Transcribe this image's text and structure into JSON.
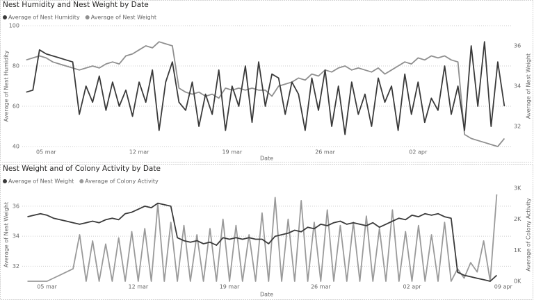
{
  "chart_data": [
    {
      "type": "line",
      "title": "Nest Humidity and Nest Weight by Date",
      "x_label": "Date",
      "y_label": "Average of Nest Humidity",
      "y2_label": "Average of Nest Weight",
      "x": [
        3.5,
        4,
        4.5,
        5,
        5.5,
        6,
        6.5,
        7,
        7.5,
        8,
        8.5,
        9,
        9.5,
        10,
        10.5,
        11,
        11.5,
        12,
        12.5,
        13,
        13.5,
        14,
        14.5,
        15,
        15.5,
        16,
        16.5,
        17,
        17.5,
        18,
        18.5,
        19,
        19.5,
        20,
        20.5,
        21,
        21.5,
        22,
        22.5,
        23,
        23.5,
        24,
        24.5,
        25,
        25.5,
        26,
        26.5,
        27,
        27.5,
        28,
        28.5,
        29,
        29.5,
        30,
        30.5,
        31,
        31.5,
        32,
        32.5,
        33,
        33.5,
        34,
        34.5,
        35,
        35.5,
        36,
        36.5,
        37,
        37.5,
        38,
        38.5,
        39,
        39.5
      ],
      "xlim": [
        3.2,
        40
      ],
      "xticks": [
        {
          "value": 5,
          "label": "05 mar"
        },
        {
          "value": 12,
          "label": "12 mar"
        },
        {
          "value": 19,
          "label": "19 mar"
        },
        {
          "value": 26,
          "label": "26 mar"
        },
        {
          "value": 33,
          "label": "02 apr"
        }
      ],
      "ylim": [
        40,
        100
      ],
      "yticks": [
        40,
        60,
        80,
        100
      ],
      "y2lim": [
        31,
        37
      ],
      "y2ticks": [
        32,
        34,
        36
      ],
      "grid": true,
      "series": [
        {
          "name": "Average of Nest Humidity",
          "color": "#3a3a3a",
          "values": [
            67,
            68,
            88,
            86,
            85,
            84,
            83,
            82,
            56,
            70,
            62,
            75,
            58,
            72,
            60,
            68,
            55,
            72,
            62,
            78,
            48,
            72,
            82,
            62,
            58,
            72,
            50,
            66,
            56,
            78,
            48,
            70,
            60,
            80,
            52,
            82,
            60,
            76,
            74,
            56,
            72,
            66,
            48,
            74,
            58,
            78,
            50,
            70,
            46,
            72,
            56,
            66,
            50,
            74,
            62,
            70,
            48,
            76,
            56,
            72,
            52,
            64,
            58,
            80,
            56,
            70,
            48,
            90,
            60,
            92,
            50,
            82,
            60
          ]
        },
        {
          "name": "Average of Nest Weight",
          "color": "#8f8f8f",
          "axis": "y2",
          "values": [
            35.3,
            35.4,
            35.5,
            35.4,
            35.2,
            35.1,
            35.0,
            34.9,
            34.8,
            34.9,
            35.0,
            34.9,
            35.1,
            35.2,
            35.1,
            35.5,
            35.6,
            35.8,
            36.0,
            35.9,
            36.2,
            36.1,
            36.0,
            33.9,
            33.7,
            33.6,
            33.7,
            33.5,
            33.6,
            33.4,
            33.9,
            33.8,
            33.9,
            33.8,
            33.9,
            33.8,
            33.8,
            33.5,
            34.0,
            34.1,
            34.2,
            34.4,
            34.3,
            34.6,
            34.5,
            34.8,
            34.7,
            34.9,
            35.0,
            34.8,
            34.9,
            34.8,
            34.7,
            34.9,
            34.6,
            34.8,
            35.0,
            35.2,
            35.1,
            35.4,
            35.3,
            35.5,
            35.4,
            35.5,
            35.3,
            35.2,
            31.6,
            31.4,
            31.3,
            31.2,
            31.1,
            31.0,
            31.4
          ]
        }
      ]
    },
    {
      "type": "line",
      "title": "Nest Weight and of Colony Activity by Date",
      "x_label": "Date",
      "y_label": "Average of Nest Weight",
      "y2_label": "Average of Colony Activity",
      "x": [
        3.5,
        4,
        4.5,
        5,
        5.5,
        6,
        6.5,
        7,
        7.5,
        8,
        8.5,
        9,
        9.5,
        10,
        10.5,
        11,
        11.5,
        12,
        12.5,
        13,
        13.5,
        14,
        14.5,
        15,
        15.5,
        16,
        16.5,
        17,
        17.5,
        18,
        18.5,
        19,
        19.5,
        20,
        20.5,
        21,
        21.5,
        22,
        22.5,
        23,
        23.5,
        24,
        24.5,
        25,
        25.5,
        26,
        26.5,
        27,
        27.5,
        28,
        28.5,
        29,
        29.5,
        30,
        30.5,
        31,
        31.5,
        32,
        32.5,
        33,
        33.5,
        34,
        34.5,
        35,
        35.5,
        36,
        36.5,
        37,
        37.5,
        38,
        38.5,
        39,
        39.5
      ],
      "xlim": [
        3.1,
        40.6
      ],
      "xticks": [
        {
          "value": 5,
          "label": "05 mar"
        },
        {
          "value": 12,
          "label": "12 mar"
        },
        {
          "value": 19,
          "label": "19 mar"
        },
        {
          "value": 26,
          "label": "26 mar"
        },
        {
          "value": 33,
          "label": "02 apr"
        },
        {
          "value": 40,
          "label": "09 apr"
        }
      ],
      "ylim": [
        31,
        37.2
      ],
      "yticks": [
        32,
        34,
        36
      ],
      "y2lim": [
        0,
        3000
      ],
      "y2ticks": [
        {
          "value": 0,
          "label": "0K"
        },
        {
          "value": 1000,
          "label": "1K"
        },
        {
          "value": 2000,
          "label": "2K"
        },
        {
          "value": 3000,
          "label": "3K"
        }
      ],
      "grid": true,
      "series": [
        {
          "name": "Average of Nest Weight",
          "color": "#3a3a3a",
          "values": [
            35.3,
            35.4,
            35.5,
            35.4,
            35.2,
            35.1,
            35.0,
            34.9,
            34.8,
            34.9,
            35.0,
            34.9,
            35.1,
            35.2,
            35.1,
            35.5,
            35.6,
            35.8,
            36.0,
            35.9,
            36.2,
            36.1,
            36.0,
            33.9,
            33.7,
            33.6,
            33.7,
            33.5,
            33.6,
            33.4,
            33.9,
            33.8,
            33.9,
            33.8,
            33.9,
            33.8,
            33.8,
            33.5,
            34.0,
            34.1,
            34.2,
            34.4,
            34.3,
            34.6,
            34.5,
            34.8,
            34.7,
            34.9,
            35.0,
            34.8,
            34.9,
            34.8,
            34.7,
            34.9,
            34.6,
            34.8,
            35.0,
            35.2,
            35.1,
            35.4,
            35.3,
            35.5,
            35.4,
            35.5,
            35.3,
            35.2,
            31.6,
            31.4,
            31.3,
            31.2,
            31.1,
            31.0,
            31.4
          ]
        },
        {
          "name": "Average of Colony Activity",
          "color": "#9a9a9a",
          "axis": "y2",
          "values": [
            0,
            0,
            0,
            0,
            100,
            200,
            300,
            400,
            1500,
            0,
            1300,
            0,
            1200,
            0,
            1400,
            0,
            1600,
            0,
            1700,
            0,
            2500,
            0,
            1900,
            0,
            1800,
            0,
            1500,
            0,
            1700,
            0,
            2000,
            0,
            1800,
            0,
            1500,
            0,
            2200,
            0,
            2700,
            0,
            2000,
            0,
            2600,
            0,
            1900,
            0,
            2300,
            0,
            1800,
            0,
            1900,
            0,
            2100,
            0,
            1700,
            0,
            2300,
            0,
            1600,
            0,
            1800,
            0,
            1500,
            0,
            1900,
            0,
            400,
            100,
            600,
            300,
            1300,
            0,
            2800
          ]
        }
      ]
    }
  ]
}
